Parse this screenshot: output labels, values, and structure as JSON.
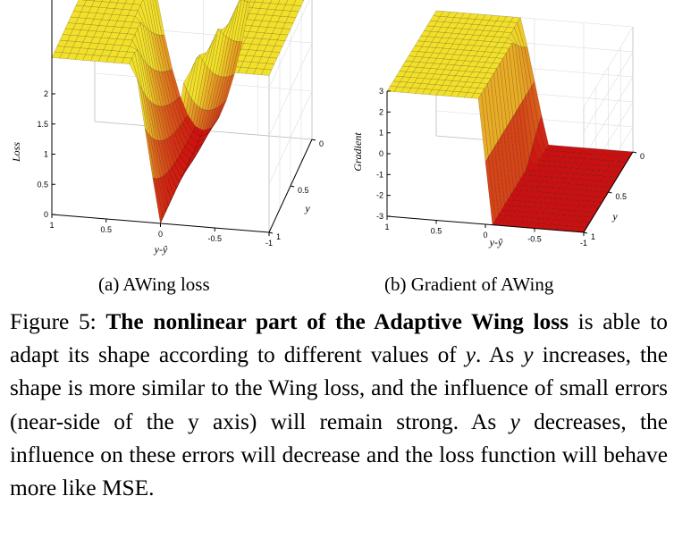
{
  "figure": {
    "panels": [
      {
        "id": "a",
        "caption": "(a) AWing loss",
        "z_label": "Loss",
        "x_label": "y-ŷ",
        "y_label": "y",
        "z_ticks": [
          "0",
          "0.5",
          "1",
          "1.5",
          "2"
        ],
        "x_ticks": [
          "1",
          "0.5",
          "0",
          "-0.5",
          "-1"
        ],
        "y_ticks": [
          "1",
          "0.5",
          "0"
        ]
      },
      {
        "id": "b",
        "caption": "(b) Gradient of AWing",
        "z_label": "Gradient",
        "x_label": "y-ŷ",
        "y_label": "y",
        "z_ticks": [
          "-3",
          "-2",
          "-1",
          "0",
          "1",
          "2",
          "3"
        ],
        "x_ticks": [
          "1",
          "0.5",
          "0",
          "-0.5",
          "-1"
        ],
        "y_ticks": [
          "1",
          "0.5",
          "0"
        ]
      }
    ],
    "colors": {
      "surface_high": "#f2e02a",
      "surface_low": "#cc1010",
      "mesh": "#000000"
    }
  },
  "caption": {
    "label": "Figure 5: ",
    "bold_text": "The nonlinear part of the Adaptive Wing loss",
    "part1": " is able to adapt its shape according to different values of ",
    "var1": "y",
    "part2": ". As ",
    "var2": "y",
    "part3": " increases, the shape is more similar to the Wing loss, and the influence of small errors (near-side of the y axis) will remain strong.  As ",
    "var3": "y",
    "part4": " decreases, the influence on these errors will decrease and the loss function will behave more like MSE."
  }
}
